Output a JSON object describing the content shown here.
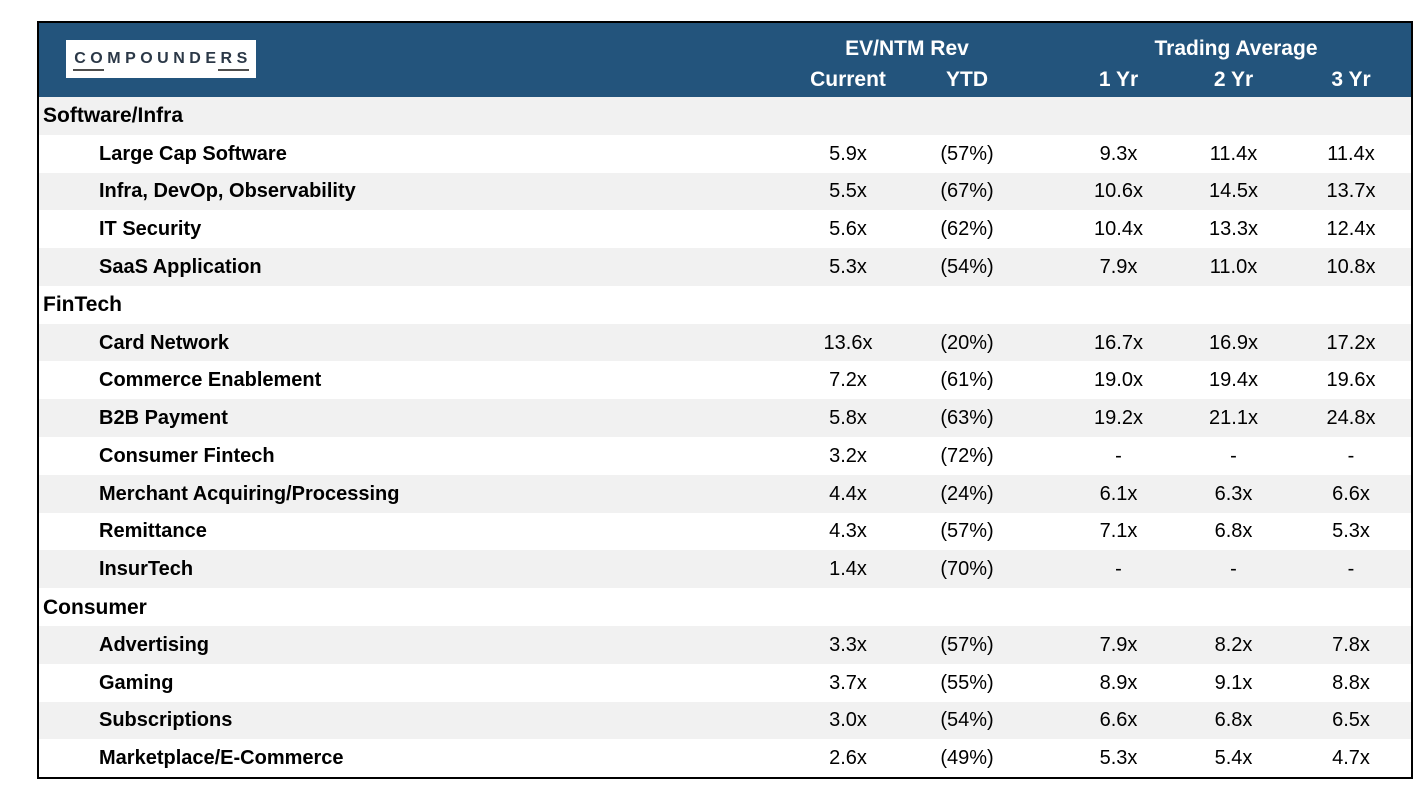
{
  "logo": {
    "text": "COMPOUNDERS"
  },
  "colors": {
    "header_bg": "#23547C",
    "stripe": "#F1F1F1",
    "border_color": "#000000",
    "logo_underline": "#4d4d4d"
  },
  "chart_data": {
    "type": "table",
    "column_groups": [
      {
        "label": "EV/NTM Rev"
      },
      {
        "label": "Trading Average"
      }
    ],
    "columns": [
      "Current",
      "YTD",
      "1 Yr",
      "2 Yr",
      "3 Yr"
    ],
    "sections": [
      {
        "name": "Software/Infra",
        "rows": [
          {
            "label": "Large Cap Software",
            "current": "5.9x",
            "ytd": "(57%)",
            "yr1": "9.3x",
            "yr2": "11.4x",
            "yr3": "11.4x"
          },
          {
            "label": "Infra, DevOp, Observability",
            "current": "5.5x",
            "ytd": "(67%)",
            "yr1": "10.6x",
            "yr2": "14.5x",
            "yr3": "13.7x"
          },
          {
            "label": "IT Security",
            "current": "5.6x",
            "ytd": "(62%)",
            "yr1": "10.4x",
            "yr2": "13.3x",
            "yr3": "12.4x"
          },
          {
            "label": "SaaS Application",
            "current": "5.3x",
            "ytd": "(54%)",
            "yr1": "7.9x",
            "yr2": "11.0x",
            "yr3": "10.8x"
          }
        ]
      },
      {
        "name": "FinTech",
        "rows": [
          {
            "label": "Card Network",
            "current": "13.6x",
            "ytd": "(20%)",
            "yr1": "16.7x",
            "yr2": "16.9x",
            "yr3": "17.2x"
          },
          {
            "label": "Commerce Enablement",
            "current": "7.2x",
            "ytd": "(61%)",
            "yr1": "19.0x",
            "yr2": "19.4x",
            "yr3": "19.6x"
          },
          {
            "label": "B2B Payment",
            "current": "5.8x",
            "ytd": "(63%)",
            "yr1": "19.2x",
            "yr2": "21.1x",
            "yr3": "24.8x"
          },
          {
            "label": "Consumer Fintech",
            "current": "3.2x",
            "ytd": "(72%)",
            "yr1": "-",
            "yr2": "-",
            "yr3": "-"
          },
          {
            "label": "Merchant Acquiring/Processing",
            "current": "4.4x",
            "ytd": "(24%)",
            "yr1": "6.1x",
            "yr2": "6.3x",
            "yr3": "6.6x"
          },
          {
            "label": "Remittance",
            "current": "4.3x",
            "ytd": "(57%)",
            "yr1": "7.1x",
            "yr2": "6.8x",
            "yr3": "5.3x"
          },
          {
            "label": "InsurTech",
            "current": "1.4x",
            "ytd": "(70%)",
            "yr1": "-",
            "yr2": "-",
            "yr3": "-"
          }
        ]
      },
      {
        "name": "Consumer",
        "rows": [
          {
            "label": "Advertising",
            "current": "3.3x",
            "ytd": "(57%)",
            "yr1": "7.9x",
            "yr2": "8.2x",
            "yr3": "7.8x"
          },
          {
            "label": "Gaming",
            "current": "3.7x",
            "ytd": "(55%)",
            "yr1": "8.9x",
            "yr2": "9.1x",
            "yr3": "8.8x"
          },
          {
            "label": "Subscriptions",
            "current": "3.0x",
            "ytd": "(54%)",
            "yr1": "6.6x",
            "yr2": "6.8x",
            "yr3": "6.5x"
          },
          {
            "label": "Marketplace/E-Commerce",
            "current": "2.6x",
            "ytd": "(49%)",
            "yr1": "5.3x",
            "yr2": "5.4x",
            "yr3": "4.7x"
          }
        ]
      }
    ]
  }
}
